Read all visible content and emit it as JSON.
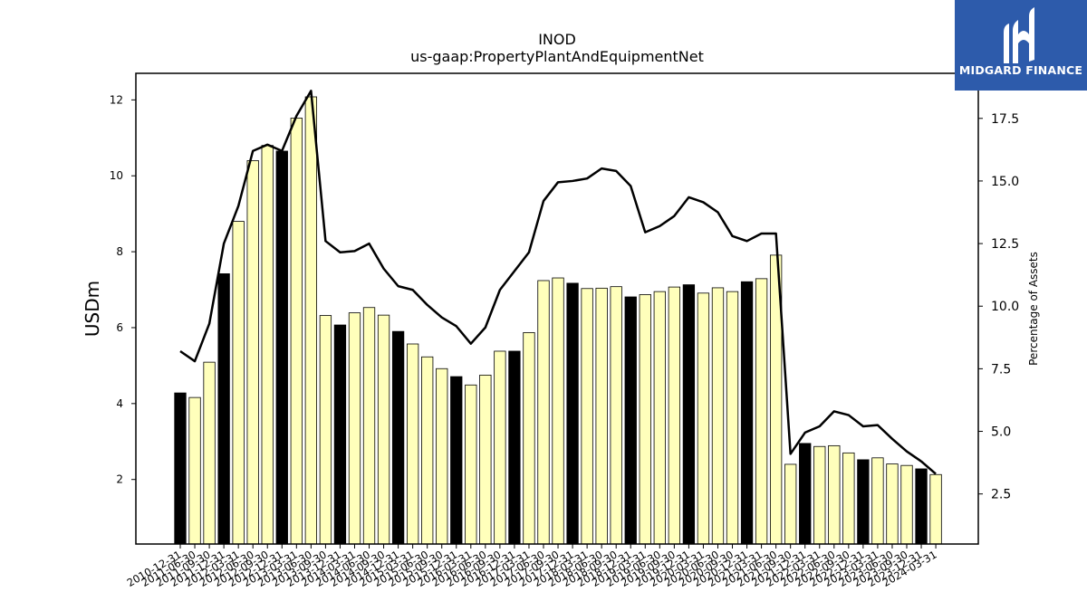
{
  "chart_data": {
    "type": "bar",
    "title": "INOD",
    "subtitle": "us-gaap:PropertyPlantAndEquipmentNet",
    "ylabel": "USDm",
    "y2label": "Percentage of Assets",
    "ylim": [
      0.3,
      12.7
    ],
    "y2lim": [
      0.5,
      19.3
    ],
    "yticks": [
      2,
      4,
      6,
      8,
      10,
      12
    ],
    "y2ticks": [
      "2.5",
      "5.0",
      "7.5",
      "10.0",
      "12.5",
      "15.0",
      "17.5"
    ],
    "categories": [
      "2010-12-31",
      "2011-06-30",
      "2011-09-30",
      "2011-12-31",
      "2012-03-31",
      "2012-06-30",
      "2012-09-30",
      "2012-12-31",
      "2013-03-31",
      "2013-06-30",
      "2013-09-30",
      "2013-12-31",
      "2014-03-31",
      "2014-06-30",
      "2014-09-30",
      "2014-12-31",
      "2015-03-31",
      "2015-06-30",
      "2015-09-30",
      "2015-12-31",
      "2016-03-31",
      "2016-06-30",
      "2016-09-30",
      "2016-12-31",
      "2017-03-31",
      "2017-06-30",
      "2017-09-30",
      "2017-12-31",
      "2018-03-31",
      "2018-06-30",
      "2018-09-30",
      "2018-12-31",
      "2019-03-31",
      "2019-06-30",
      "2019-09-30",
      "2019-12-31",
      "2020-03-31",
      "2020-06-30",
      "2020-09-30",
      "2020-12-31",
      "2021-03-31",
      "2021-06-30",
      "2021-09-30",
      "2021-12-31",
      "2022-03-31",
      "2022-06-30",
      "2022-09-30",
      "2022-12-31",
      "2023-03-31",
      "2023-06-30",
      "2023-09-30",
      "2023-12-31",
      "2024-03-31"
    ],
    "series": [
      {
        "type": "bar",
        "values": [
          4.28,
          4.16,
          5.09,
          7.42,
          8.8,
          10.4,
          10.8,
          10.65,
          11.52,
          12.08,
          6.32,
          6.07,
          6.39,
          6.53,
          6.33,
          5.9,
          5.57,
          5.23,
          4.92,
          4.71,
          4.49,
          4.75,
          5.38,
          5.38,
          5.87,
          7.24,
          7.31,
          7.17,
          7.03,
          7.04,
          7.08,
          6.81,
          6.87,
          6.95,
          7.07,
          7.13,
          6.91,
          7.05,
          6.95,
          7.21,
          7.29,
          7.91,
          2.4,
          2.95,
          2.87,
          2.89,
          2.7,
          2.52,
          2.57,
          2.41,
          2.37,
          2.28,
          2.13
        ],
        "fiscal_year_end": [
          true,
          false,
          false,
          true,
          false,
          false,
          false,
          true,
          false,
          false,
          false,
          true,
          false,
          false,
          false,
          true,
          false,
          false,
          false,
          true,
          false,
          false,
          false,
          true,
          false,
          false,
          false,
          true,
          false,
          false,
          false,
          true,
          false,
          false,
          false,
          true,
          false,
          false,
          false,
          true,
          false,
          false,
          false,
          true,
          false,
          false,
          false,
          true,
          false,
          false,
          false,
          true,
          false
        ],
        "colors": {
          "fiscal_year_end": "#000000",
          "quarter": "#ffffbb"
        }
      },
      {
        "type": "line",
        "axis": "right",
        "color": "#000000",
        "values": [
          8.2,
          7.8,
          9.3,
          12.5,
          14.0,
          16.2,
          16.45,
          16.2,
          17.6,
          18.6,
          12.6,
          12.15,
          12.2,
          12.5,
          11.5,
          10.8,
          10.65,
          10.05,
          9.55,
          9.2,
          8.5,
          9.15,
          10.65,
          11.4,
          12.15,
          14.2,
          14.95,
          15.0,
          15.1,
          15.5,
          15.4,
          14.8,
          12.95,
          13.2,
          13.6,
          14.35,
          14.15,
          13.75,
          12.8,
          12.6,
          12.9,
          12.9,
          4.1,
          4.95,
          5.2,
          5.8,
          5.65,
          5.2,
          5.25,
          4.7,
          4.2,
          3.8,
          3.3
        ]
      }
    ],
    "legend": "none"
  },
  "logo": {
    "text": "MIDGARD FINANCE"
  }
}
